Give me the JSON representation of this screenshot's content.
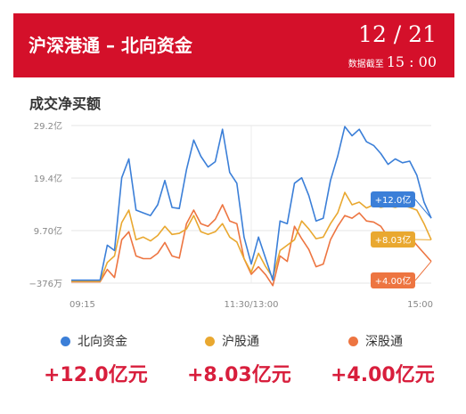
{
  "header": {
    "title": "沪深港通 – 北向资金",
    "date": "12 / 21",
    "as_of_label": "数据截至",
    "as_of_time": "15 : 00",
    "bg_color": "#d4102a"
  },
  "section_title": "成交净买额",
  "legend": [
    {
      "name": "北向资金",
      "color": "#3b7fd8",
      "total": "+12.0亿元"
    },
    {
      "name": "沪股通",
      "color": "#e9a830",
      "total": "+8.03亿元"
    },
    {
      "name": "深股通",
      "color": "#ed7541",
      "total": "+4.00亿元"
    }
  ],
  "chart_data": {
    "type": "line",
    "x_ticks": [
      "09:15",
      "11:30/13:00",
      "15:00"
    ],
    "y_ticks": [
      "29.2亿",
      "19.4亿",
      "9.70亿",
      "−376万"
    ],
    "ylim": [
      -0.0376,
      29.2
    ],
    "x": [
      0,
      2,
      4,
      6,
      8,
      10,
      12,
      14,
      16,
      18,
      20,
      22,
      24,
      26,
      28,
      30,
      32,
      34,
      36,
      38,
      40,
      42,
      44,
      46,
      48,
      50,
      52,
      54,
      56,
      58,
      60,
      62,
      64,
      66,
      68,
      70,
      72,
      74,
      76,
      78,
      80,
      82,
      84,
      86,
      88,
      90,
      92,
      94,
      96,
      98,
      100
    ],
    "series": [
      {
        "name": "北向资金",
        "color": "#3b7fd8",
        "end_label": "+12.0亿",
        "values": [
          0.5,
          0.5,
          0.5,
          0.5,
          0.5,
          7.0,
          6.0,
          19.5,
          23.0,
          13.5,
          13.0,
          12.5,
          14.5,
          19.0,
          14.0,
          13.8,
          21.0,
          26.5,
          23.5,
          21.5,
          22.5,
          28.5,
          20.5,
          18.5,
          8.5,
          3.5,
          8.5,
          4.5,
          0.5,
          11.5,
          11.0,
          18.5,
          19.5,
          16.2,
          11.5,
          12.0,
          19.0,
          23.5,
          29.0,
          27.3,
          28.5,
          26.2,
          25.5,
          24.0,
          22.0,
          23.0,
          22.3,
          22.6,
          20.0,
          15.0,
          12.0
        ]
      },
      {
        "name": "沪股通",
        "color": "#e9a830",
        "end_label": "+8.03亿",
        "values": [
          0.3,
          0.3,
          0.3,
          0.3,
          0.3,
          3.8,
          5.0,
          11.2,
          13.5,
          8.0,
          8.5,
          7.8,
          8.8,
          10.5,
          9.0,
          9.2,
          10.0,
          12.5,
          9.5,
          9.0,
          9.5,
          11.0,
          8.5,
          7.6,
          4.5,
          2.0,
          5.5,
          3.0,
          1.0,
          6.0,
          7.0,
          8.0,
          11.5,
          10.0,
          8.2,
          8.5,
          11.0,
          13.0,
          16.8,
          14.5,
          15.0,
          13.9,
          14.5,
          14.0,
          14.3,
          14.0,
          14.4,
          14.0,
          13.5,
          11.0,
          8.0
        ]
      },
      {
        "name": "深股通",
        "color": "#ed7541",
        "end_label": "+4.00亿",
        "values": [
          0.2,
          0.2,
          0.2,
          0.2,
          0.2,
          2.5,
          1.0,
          8.0,
          9.5,
          5.0,
          4.5,
          4.5,
          5.5,
          7.5,
          5.0,
          4.6,
          11.0,
          13.5,
          11.0,
          10.5,
          11.8,
          14.5,
          11.5,
          11.0,
          4.5,
          1.6,
          3.0,
          1.5,
          -0.5,
          5.0,
          4.0,
          10.5,
          8.2,
          6.2,
          3.0,
          3.5,
          8.0,
          10.5,
          12.5,
          12.0,
          13.0,
          11.5,
          11.3,
          10.5,
          8.5,
          9.2,
          8.0,
          8.6,
          7.0,
          5.5,
          4.0
        ]
      }
    ]
  }
}
